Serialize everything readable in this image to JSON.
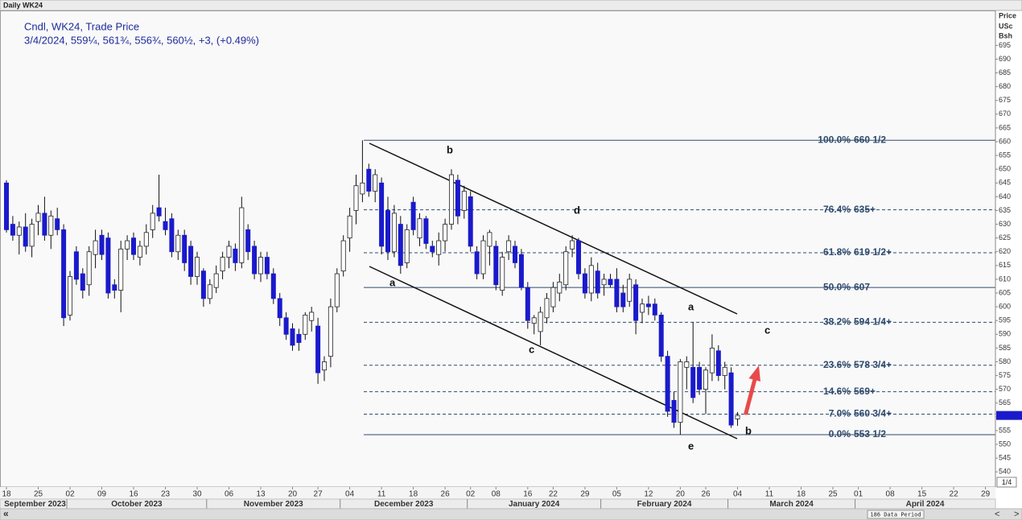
{
  "header": {
    "title": "Daily WK24"
  },
  "chart_data": {
    "type": "candlestick",
    "title": "Cndl, WK24, Trade Price",
    "subtitle": "3/4/2024, 559¼, 561¾, 556¾, 560½, +3, (+0.49%)",
    "y_axis_label": [
      "Price",
      "USc",
      "Bsh"
    ],
    "categories": [
      "18",
      null,
      null,
      null,
      null,
      "25",
      null,
      null,
      null,
      null,
      "02",
      null,
      null,
      null,
      null,
      "09",
      null,
      null,
      null,
      null,
      "16",
      null,
      null,
      null,
      null,
      "23",
      null,
      null,
      null,
      null,
      "30",
      null,
      null,
      null,
      null,
      "06",
      null,
      null,
      null,
      null,
      "13",
      null,
      null,
      null,
      null,
      "20",
      null,
      null,
      null,
      "27",
      null,
      null,
      null,
      null,
      "04",
      null,
      null,
      null,
      null,
      "11",
      null,
      null,
      null,
      null,
      "18",
      null,
      null,
      null,
      null,
      "26",
      null,
      null,
      null,
      "02",
      null,
      null,
      null,
      "08",
      null,
      null,
      null,
      null,
      "16",
      null,
      null,
      null,
      "22",
      null,
      null,
      null,
      null,
      "29",
      null,
      null,
      null,
      null,
      "05",
      null,
      null,
      null,
      null,
      "12",
      null,
      null,
      null,
      null,
      "20",
      null,
      null,
      null,
      "26",
      null,
      null,
      null,
      null,
      "04",
      null,
      null,
      null,
      null,
      "11",
      null,
      null,
      null,
      null,
      "18",
      null,
      null,
      null,
      null,
      "25",
      null,
      null,
      null,
      "01",
      null,
      null,
      null,
      null,
      "08",
      null,
      null,
      null,
      null,
      "15",
      null,
      null,
      null,
      null,
      "22",
      null,
      null,
      null,
      null,
      "29",
      null
    ],
    "month_labels": [
      "September 2023",
      "October 2023",
      "November 2023",
      "December 2023",
      "January 2024",
      "February 2024",
      "March 2024",
      "April 2024"
    ],
    "open": [
      645,
      630,
      626,
      629,
      622,
      631,
      634,
      626,
      632,
      628,
      597,
      620,
      612,
      608,
      619,
      626,
      625,
      608,
      606,
      621,
      625,
      618,
      622,
      628,
      636,
      631,
      632,
      620,
      626,
      622,
      611,
      613,
      603,
      607,
      613,
      618,
      621,
      616,
      628,
      622,
      612,
      618,
      612,
      603,
      596,
      592,
      590,
      590,
      595,
      593,
      577,
      582,
      600,
      613,
      625,
      635,
      641,
      650,
      642,
      645,
      635,
      620,
      630,
      616,
      638,
      625,
      632,
      622,
      619,
      624,
      630,
      646,
      635,
      640,
      620,
      612,
      622,
      622,
      606,
      620,
      622,
      619,
      607,
      594,
      591,
      596,
      600,
      605,
      608,
      621,
      624,
      612,
      605,
      613,
      608,
      610,
      610,
      605,
      602,
      608,
      598,
      601,
      601,
      597,
      582,
      566,
      558,
      578,
      578,
      578,
      570,
      576,
      584,
      575,
      576,
      559.25,
      null,
      null,
      null,
      null,
      null,
      null,
      null,
      null,
      null,
      null,
      null,
      null,
      null,
      null,
      null,
      null,
      null,
      null,
      null,
      null,
      null,
      null,
      null,
      null,
      null,
      null,
      null,
      null,
      null,
      null,
      null,
      null,
      null,
      null,
      null,
      null,
      null,
      null,
      null,
      null
    ],
    "high": [
      646,
      633,
      631,
      634,
      632,
      637,
      640,
      635,
      636,
      630,
      613,
      622,
      614,
      622,
      628,
      628,
      627,
      610,
      624,
      626,
      627,
      624,
      630,
      637,
      648,
      636,
      634,
      628,
      628,
      624,
      620,
      614,
      610,
      615,
      620,
      624,
      623,
      640,
      630,
      624,
      620,
      620,
      614,
      605,
      598,
      594,
      592,
      598,
      600,
      596,
      582,
      603,
      614,
      626,
      636,
      648,
      660.5,
      652,
      650,
      647,
      640,
      637,
      633,
      630,
      640,
      634,
      633,
      624,
      627,
      632,
      650,
      648,
      644,
      642,
      622,
      626,
      628,
      624,
      620,
      626,
      624,
      621,
      609,
      597,
      600,
      605,
      609,
      612,
      622,
      626,
      625,
      614,
      618,
      616,
      612,
      612,
      614,
      608,
      612,
      610,
      603,
      604,
      603,
      598,
      584,
      569,
      581,
      582,
      594.5,
      580,
      578,
      590,
      586,
      580,
      578,
      561.75,
      null,
      null,
      null,
      null,
      null,
      null,
      null,
      null,
      null,
      null,
      null,
      null,
      null,
      null,
      null,
      null,
      null,
      null,
      null,
      null,
      null,
      null,
      null,
      null,
      null,
      null,
      null,
      null,
      null,
      null,
      null,
      null,
      null,
      null,
      null,
      null,
      null,
      null,
      null,
      null
    ],
    "low": [
      627,
      624,
      619,
      620,
      618,
      626,
      624,
      621,
      626,
      593,
      595,
      608,
      603,
      604,
      614,
      617,
      603,
      603,
      598,
      617,
      617,
      615,
      619,
      625,
      631,
      626,
      618,
      617,
      613,
      608,
      608,
      600,
      601,
      605,
      610,
      614,
      613,
      614,
      617,
      610,
      609,
      610,
      601,
      593,
      588,
      584,
      584,
      588,
      591,
      572,
      573,
      578,
      598,
      611,
      620,
      630,
      638,
      640,
      638,
      619,
      617,
      618,
      612,
      614,
      626,
      622,
      621,
      618,
      615,
      620,
      628,
      630,
      632,
      620,
      610,
      610,
      615,
      606,
      604,
      617,
      614,
      606,
      592,
      590,
      586,
      594,
      598,
      602,
      606,
      618,
      610,
      603,
      602,
      603,
      604,
      607,
      598,
      598,
      600,
      590,
      594,
      597,
      595,
      580,
      560,
      556,
      553.5,
      570,
      565,
      568,
      561,
      573,
      573,
      570,
      556,
      556.75,
      null,
      null,
      null,
      null,
      null,
      null,
      null,
      null,
      null,
      null,
      null,
      null,
      null,
      null,
      null,
      null,
      null,
      null,
      null,
      null,
      null,
      null,
      null,
      null,
      null,
      null,
      null,
      null,
      null,
      null,
      null,
      null,
      null,
      null,
      null,
      null,
      null,
      null,
      null,
      null
    ],
    "close": [
      628,
      626,
      629,
      622,
      630,
      634,
      626,
      633,
      628,
      596,
      611,
      610,
      606,
      620,
      624,
      619,
      605,
      606,
      621,
      624,
      619,
      622,
      627,
      634,
      633,
      628,
      620,
      626,
      616,
      611,
      618,
      603,
      608,
      612,
      618,
      622,
      616,
      636,
      620,
      612,
      618,
      612,
      603,
      596,
      590,
      586,
      587,
      597,
      598,
      576,
      580,
      600,
      612,
      624,
      633,
      644,
      645,
      642,
      648,
      622,
      620,
      634,
      615,
      628,
      628,
      632,
      623,
      620,
      624,
      630,
      648,
      633,
      642,
      622,
      612,
      624,
      627,
      608,
      618,
      624,
      616,
      607,
      595,
      596,
      598,
      603,
      607,
      609,
      620,
      624,
      612,
      605,
      615,
      605,
      610,
      608,
      600,
      600,
      610,
      595,
      601,
      600,
      597,
      582,
      562,
      558,
      580,
      580,
      567,
      570,
      577,
      585,
      575,
      578,
      557,
      560.5,
      null,
      null,
      null,
      null,
      null,
      null,
      null,
      null,
      null,
      null,
      null,
      null,
      null,
      null,
      null,
      null,
      null,
      null,
      null,
      null,
      null,
      null,
      null,
      null,
      null,
      null,
      null,
      null,
      null,
      null,
      null,
      null,
      null,
      null,
      null,
      null,
      null,
      null,
      null,
      null
    ],
    "up_color": "#ffffff",
    "down_color": "#1a1acc",
    "ylim": [
      534.5,
      707.4
    ],
    "yticks": [
      540,
      545,
      550,
      555,
      560,
      565,
      570,
      575,
      580,
      585,
      590,
      595,
      600,
      605,
      610,
      615,
      620,
      625,
      630,
      635,
      640,
      645,
      650,
      655,
      660,
      665,
      670,
      675,
      680,
      685,
      690,
      695
    ],
    "fib_levels": [
      {
        "pct": "100.0%",
        "price": "660 1/2",
        "value": 660.5,
        "style": "solid"
      },
      {
        "pct": "76.4%",
        "price": "635+",
        "value": 635.25,
        "style": "dashed"
      },
      {
        "pct": "61.8%",
        "price": "619 1/2+",
        "value": 619.63,
        "style": "dashed"
      },
      {
        "pct": "50.0%",
        "price": "607",
        "value": 607,
        "style": "solid"
      },
      {
        "pct": "38.2%",
        "price": "594 1/4+",
        "value": 594.37,
        "style": "dashed"
      },
      {
        "pct": "23.6%",
        "price": "578 3/4+",
        "value": 578.75,
        "style": "dashed"
      },
      {
        "pct": "14.6%",
        "price": "569+",
        "value": 569.12,
        "style": "dashed"
      },
      {
        "pct": "7.0%",
        "price": "560 3/4+",
        "value": 560.99,
        "style": "dashed"
      },
      {
        "pct": "0.0%",
        "price": "553 1/2",
        "value": 553.5,
        "style": "solid"
      }
    ],
    "fib_color": "#2f4b6e",
    "wave_labels": [
      "a",
      "b",
      "c",
      "d",
      "a",
      "c",
      "b",
      "e"
    ],
    "page_label": "1/4",
    "data_period": "186 Data Period"
  }
}
